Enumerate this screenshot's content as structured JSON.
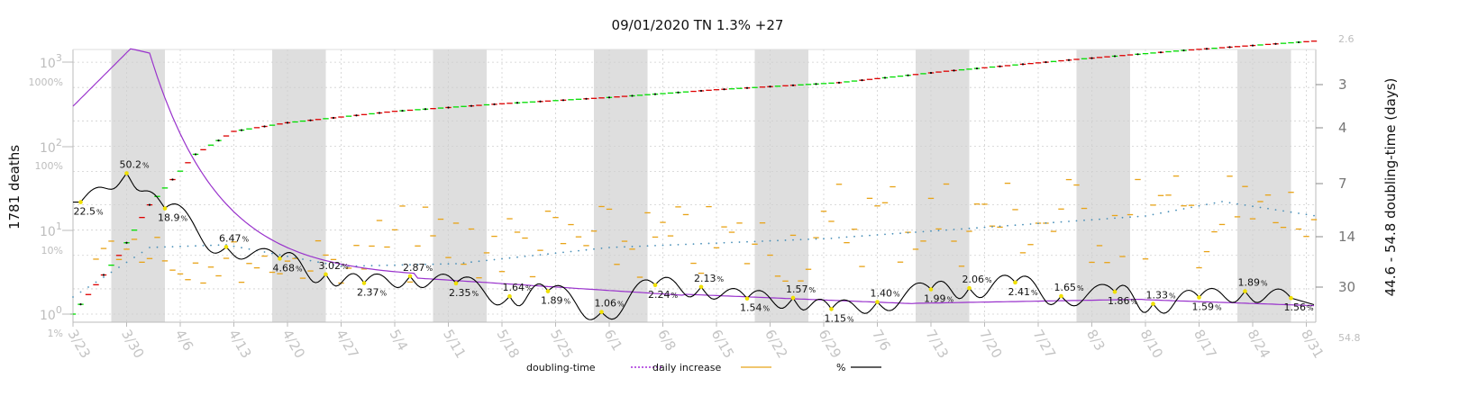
{
  "chart_data": {
    "type": "line",
    "title": "09/01/2020 TN 1.3% +27",
    "ylabel_left": "1781 deaths",
    "ylabel_right": "44.6 - 54.8 doubling-time (days)",
    "x_ticks": [
      "3/23",
      "3/30",
      "4/6",
      "4/13",
      "4/20",
      "4/27",
      "5/4",
      "5/11",
      "5/18",
      "5/25",
      "6/1",
      "6/8",
      "6/15",
      "6/22",
      "6/29",
      "7/6",
      "7/13",
      "7/20",
      "7/27",
      "8/3",
      "8/10",
      "8/17",
      "8/24",
      "8/31"
    ],
    "y_left_ticks": [
      {
        "label": "10",
        "exp": "0"
      },
      {
        "label": "10",
        "exp": "1"
      },
      {
        "label": "10",
        "exp": "2"
      },
      {
        "label": "10",
        "exp": "3"
      }
    ],
    "y_left_pct_ticks": [
      "1%",
      "10%",
      "100%",
      "1000%"
    ],
    "y_right_ticks": [
      "2.6",
      "3",
      "4",
      "7",
      "14",
      "30",
      "54.8"
    ],
    "legend": [
      {
        "name": "doubling-time",
        "color": "#9400d3",
        "style": "dotted"
      },
      {
        "name": "daily increase",
        "color": "#e8a317",
        "style": "solid"
      },
      {
        "name": "%",
        "color": "#000000",
        "style": "solid"
      }
    ],
    "percent_labels": [
      {
        "date": "3/24",
        "value": "22.5"
      },
      {
        "date": "3/30",
        "value": "50.2"
      },
      {
        "date": "4/4",
        "value": "18.9"
      },
      {
        "date": "4/12",
        "value": "6.47"
      },
      {
        "date": "4/19",
        "value": "4.68"
      },
      {
        "date": "4/25",
        "value": "3.02"
      },
      {
        "date": "4/30",
        "value": "2.37"
      },
      {
        "date": "5/6",
        "value": "2.87"
      },
      {
        "date": "5/12",
        "value": "2.35"
      },
      {
        "date": "5/19",
        "value": "1.64"
      },
      {
        "date": "5/24",
        "value": "1.89"
      },
      {
        "date": "5/31",
        "value": "1.06"
      },
      {
        "date": "6/7",
        "value": "2.24"
      },
      {
        "date": "6/13",
        "value": "2.13"
      },
      {
        "date": "6/19",
        "value": "1.54"
      },
      {
        "date": "6/25",
        "value": "1.57"
      },
      {
        "date": "6/30",
        "value": "1.15"
      },
      {
        "date": "7/6",
        "value": "1.40"
      },
      {
        "date": "7/13",
        "value": "1.99"
      },
      {
        "date": "7/18",
        "value": "2.06"
      },
      {
        "date": "7/24",
        "value": "2.41"
      },
      {
        "date": "7/30",
        "value": "1.65"
      },
      {
        "date": "8/6",
        "value": "1.86"
      },
      {
        "date": "8/11",
        "value": "1.33"
      },
      {
        "date": "8/17",
        "value": "1.59"
      },
      {
        "date": "8/23",
        "value": "1.89"
      },
      {
        "date": "8/29",
        "value": "1.56"
      }
    ],
    "cumulative_deaths_anchor": [
      {
        "date": "3/23",
        "value": 1
      },
      {
        "date": "3/29",
        "value": 5
      },
      {
        "date": "4/2",
        "value": 20
      },
      {
        "date": "4/8",
        "value": 80
      },
      {
        "date": "4/13",
        "value": 150
      },
      {
        "date": "4/20",
        "value": 190
      },
      {
        "date": "5/4",
        "value": 260
      },
      {
        "date": "5/18",
        "value": 320
      },
      {
        "date": "6/1",
        "value": 380
      },
      {
        "date": "6/15",
        "value": 470
      },
      {
        "date": "7/1",
        "value": 570
      },
      {
        "date": "7/15",
        "value": 780
      },
      {
        "date": "8/1",
        "value": 1080
      },
      {
        "date": "8/15",
        "value": 1380
      },
      {
        "date": "9/1",
        "value": 1781
      }
    ]
  },
  "colors": {
    "weekend_band": "#dedede",
    "cumulative_up": "#00dd00",
    "cumulative_down": "#dd0000",
    "daily": "#e8a317",
    "doubling": "#9932cc",
    "percent": "#000000",
    "avg_dotted": "#4a90b8",
    "label_dot": "#f0e000"
  }
}
